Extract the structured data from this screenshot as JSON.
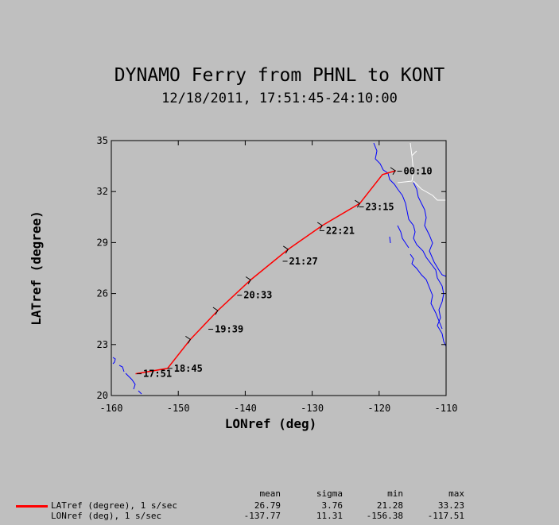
{
  "title": "DYNAMO Ferry from PHNL to KONT",
  "subtitle": "12/18/2011, 17:51:45-24:10:00",
  "chart_data": {
    "type": "line",
    "xlabel": "LONref (deg)",
    "ylabel": "LATref (degree)",
    "xlim": [
      -160,
      -110
    ],
    "ylim": [
      20,
      35
    ],
    "xticks": [
      -160,
      -150,
      -140,
      -130,
      -120,
      -110
    ],
    "yticks": [
      20,
      23,
      26,
      29,
      32,
      35
    ],
    "series": [
      {
        "name": "LATref (degree), 1 s/sec",
        "color": "#ff0000",
        "x": [
          -156.38,
          -151.6,
          -148.2,
          -144.1,
          -139.2,
          -133.6,
          -128.5,
          -122.9,
          -119.5,
          -117.51
        ],
        "y": [
          21.28,
          21.6,
          23.3,
          25.0,
          26.8,
          28.6,
          30.0,
          31.3,
          33.0,
          33.23
        ]
      }
    ],
    "time_labels": [
      {
        "text": "17:51",
        "x": -156.2,
        "y": 21.28
      },
      {
        "text": "18:45",
        "x": -151.6,
        "y": 21.6
      },
      {
        "text": "19:39",
        "x": -145.5,
        "y": 23.9
      },
      {
        "text": "20:33",
        "x": -141.2,
        "y": 25.9
      },
      {
        "text": "21:27",
        "x": -134.4,
        "y": 27.9
      },
      {
        "text": "22:21",
        "x": -128.9,
        "y": 29.7
      },
      {
        "text": "23:15",
        "x": -123.0,
        "y": 31.1
      },
      {
        "text": "00:10",
        "x": -117.3,
        "y": 33.2
      }
    ],
    "arrows": [
      {
        "x": -148.2,
        "y": 23.3
      },
      {
        "x": -144.1,
        "y": 25.0
      },
      {
        "x": -139.2,
        "y": 26.8
      },
      {
        "x": -133.6,
        "y": 28.6
      },
      {
        "x": -128.5,
        "y": 30.0
      },
      {
        "x": -122.9,
        "y": 31.3
      },
      {
        "x": -117.6,
        "y": 33.23
      }
    ],
    "coastline_color": "#0000ff",
    "border_color": "#ffffff",
    "grid": false
  },
  "stats": {
    "headers": [
      "mean",
      "sigma",
      "min",
      "max"
    ],
    "rows": [
      {
        "name": "LATref (degree), 1 s/sec",
        "values": [
          "26.79",
          "3.76",
          "21.28",
          "33.23"
        ]
      },
      {
        "name": "LONref (deg), 1 s/sec",
        "values": [
          "-137.77",
          "11.31",
          "-156.38",
          "-117.51"
        ]
      }
    ],
    "legend_color": "#ff0000"
  }
}
